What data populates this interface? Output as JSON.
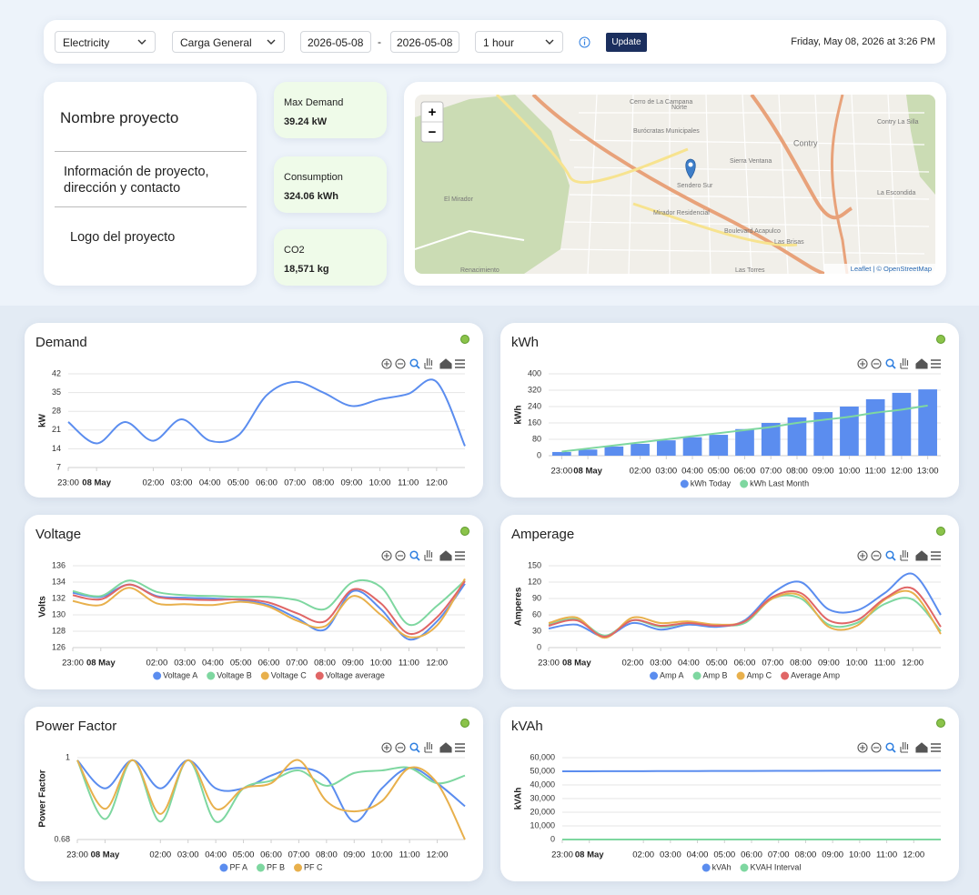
{
  "toolbar": {
    "source": "Electricity",
    "load": "Carga General",
    "date_from": "2026-05-08",
    "date_separator": "-",
    "date_to": "2026-05-08",
    "interval": "1 hour",
    "button": "Update",
    "datetime": "Friday, May 08, 2026 at 3:26 PM"
  },
  "project": {
    "name": "Nombre proyecto",
    "info": "Información de proyecto, dirección y contacto",
    "logo": "Logo del proyecto"
  },
  "kpis": [
    {
      "label": "Max Demand",
      "value": "39.24 kW"
    },
    {
      "label": "Consumption",
      "value": "324.06 kWh"
    },
    {
      "label": "CO2",
      "value": "18,571 kg"
    }
  ],
  "map": {
    "zoom_in": "+",
    "zoom_out": "−",
    "attribution": "Leaflet | © OpenStreetMap",
    "labels": [
      "Cerro de La Campana",
      "Burócratas Municipales",
      "Sierra Ventana",
      "Sendero Sur",
      "El Mirador",
      "Mirador Residencial",
      "Boulevard Acapulco",
      "Contry",
      "Las Brisas",
      "Contry La Silla",
      "La Escondida",
      "Renacimiento",
      "Las Torres",
      "Norte"
    ]
  },
  "chart_data": [
    {
      "type": "line",
      "title": "Demand",
      "y_label": "kW",
      "categories": [
        "23:00",
        "08 May",
        null,
        "02:00",
        "03:00",
        "04:00",
        "05:00",
        "06:00",
        "07:00",
        "08:00",
        "09:00",
        "10:00",
        "11:00",
        "12:00",
        null
      ],
      "values": [
        24,
        16,
        24,
        17,
        25,
        17,
        19,
        34,
        39,
        35,
        30,
        32.5,
        34.5,
        39,
        15
      ],
      "color": "#5b8def",
      "ylim": [
        7,
        42
      ],
      "yticks": [
        7,
        14,
        21,
        28,
        35,
        42
      ],
      "grid": true
    },
    {
      "type": "bar",
      "title": "kWh",
      "y_label": "kWh",
      "categories": [
        "23:00",
        "08 May",
        null,
        "02:00",
        "03:00",
        "04:00",
        "05:00",
        "06:00",
        "07:00",
        "08:00",
        "09:00",
        "10:00",
        "11:00",
        "12:00",
        "13:00"
      ],
      "series": [
        {
          "name": "kWh Today",
          "type": "bar",
          "color": "#5b8def",
          "values": [
            18,
            30,
            45,
            58,
            75,
            90,
            102,
            130,
            160,
            187,
            213,
            240,
            276,
            307,
            324
          ]
        },
        {
          "name": "kWh Last Month",
          "type": "line",
          "color": "#7ed7a0",
          "values": [
            20,
            35,
            50,
            65,
            80,
            95,
            110,
            125,
            140,
            160,
            175,
            190,
            210,
            225,
            245
          ]
        }
      ],
      "ylim": [
        0,
        400
      ],
      "yticks": [
        0,
        80,
        160,
        240,
        320,
        400
      ],
      "grid": true,
      "legend": "bottom"
    },
    {
      "type": "line",
      "title": "Voltage",
      "y_label": "Volts",
      "categories": [
        "23:00",
        "08 May",
        null,
        "02:00",
        "03:00",
        "04:00",
        "05:00",
        "06:00",
        "07:00",
        "08:00",
        "09:00",
        "10:00",
        "11:00",
        "12:00",
        null
      ],
      "series": [
        {
          "name": "Voltage A",
          "color": "#5b8def",
          "values": [
            132.7,
            132.2,
            133.7,
            132.3,
            132.1,
            132,
            131.8,
            131.2,
            129.6,
            128.2,
            132.9,
            130.7,
            127,
            129.2,
            133.8
          ]
        },
        {
          "name": "Voltage B",
          "color": "#7ed7a0",
          "values": [
            132.9,
            132.3,
            134.2,
            132.8,
            132.4,
            132.3,
            132.2,
            132.2,
            131.8,
            130.7,
            134,
            133.4,
            128.8,
            131.1,
            134.2
          ]
        },
        {
          "name": "Voltage C",
          "color": "#e8b04c",
          "values": [
            131.7,
            131.2,
            133.3,
            131.4,
            131.3,
            131.2,
            131.6,
            131,
            129.3,
            128.6,
            132.3,
            130,
            127.3,
            128.7,
            134.4
          ]
        },
        {
          "name": "Voltage average",
          "color": "#e06666",
          "values": [
            132.4,
            131.9,
            133.7,
            132.2,
            131.9,
            131.8,
            131.9,
            131.5,
            130.2,
            129.2,
            133.1,
            131.4,
            127.7,
            129.7,
            134.1
          ]
        }
      ],
      "ylim": [
        126,
        136
      ],
      "yticks": [
        126,
        128,
        130,
        132,
        134,
        136
      ],
      "grid": true,
      "legend": "bottom"
    },
    {
      "type": "line",
      "title": "Amperage",
      "y_label": "Amperes",
      "categories": [
        "23:00",
        "08 May",
        null,
        "02:00",
        "03:00",
        "04:00",
        "05:00",
        "06:00",
        "07:00",
        "08:00",
        "09:00",
        "10:00",
        "11:00",
        "12:00",
        null
      ],
      "series": [
        {
          "name": "Amp A",
          "color": "#5b8def",
          "values": [
            35,
            42,
            20,
            45,
            33,
            42,
            38,
            50,
            100,
            120,
            70,
            68,
            100,
            135,
            60
          ]
        },
        {
          "name": "Amp B",
          "color": "#7ed7a0",
          "values": [
            42,
            52,
            22,
            50,
            38,
            45,
            42,
            45,
            90,
            90,
            42,
            45,
            80,
            88,
            30
          ]
        },
        {
          "name": "Amp C",
          "color": "#e8b04c",
          "values": [
            45,
            55,
            18,
            55,
            45,
            48,
            42,
            48,
            90,
            95,
            38,
            40,
            88,
            100,
            25
          ]
        },
        {
          "name": "Average Amp",
          "color": "#e06666",
          "values": [
            40,
            50,
            20,
            50,
            40,
            45,
            40,
            48,
            93,
            100,
            50,
            50,
            90,
            108,
            38
          ]
        }
      ],
      "ylim": [
        0,
        150
      ],
      "yticks": [
        0,
        30,
        60,
        90,
        120,
        150
      ],
      "grid": true,
      "legend": "bottom"
    },
    {
      "type": "line",
      "title": "Power Factor",
      "y_label": "Power Factor",
      "categories": [
        "23:00",
        "08 May",
        null,
        "02:00",
        "03:00",
        "04:00",
        "05:00",
        "06:00",
        "07:00",
        "08:00",
        "09:00",
        "10:00",
        "11:00",
        "12:00",
        null
      ],
      "series": [
        {
          "name": "PF A",
          "color": "#5b8def",
          "values": [
            0.99,
            0.88,
            0.99,
            0.88,
            0.99,
            0.88,
            0.88,
            0.93,
            0.96,
            0.92,
            0.75,
            0.88,
            0.96,
            0.9,
            0.81
          ]
        },
        {
          "name": "PF B",
          "color": "#7ed7a0",
          "values": [
            0.99,
            0.76,
            0.99,
            0.75,
            0.99,
            0.75,
            0.88,
            0.91,
            0.95,
            0.89,
            0.94,
            0.95,
            0.96,
            0.9,
            0.93
          ]
        },
        {
          "name": "PF C",
          "color": "#e8b04c",
          "values": [
            0.99,
            0.8,
            0.99,
            0.78,
            0.99,
            0.8,
            0.88,
            0.9,
            0.99,
            0.83,
            0.79,
            0.83,
            0.96,
            0.9,
            0.68
          ]
        }
      ],
      "ylim": [
        0.68,
        1
      ],
      "yticks": [
        0.68,
        1
      ],
      "grid": true,
      "legend": "bottom"
    },
    {
      "type": "line",
      "title": "kVAh",
      "y_label": "kVAh",
      "categories": [
        "23:00",
        "08 May",
        null,
        "02:00",
        "03:00",
        "04:00",
        "05:00",
        "06:00",
        "07:00",
        "08:00",
        "09:00",
        "10:00",
        "11:00",
        "12:00",
        null
      ],
      "series": [
        {
          "name": "kVAh",
          "color": "#5b8def",
          "values": [
            50000,
            50040,
            50080,
            50120,
            50160,
            50200,
            50240,
            50280,
            50320,
            50360,
            50400,
            50440,
            50480,
            50520,
            50560
          ]
        },
        {
          "name": "KVAH Interval",
          "color": "#7ed7a0",
          "values": [
            25,
            22,
            20,
            19,
            20,
            22,
            24,
            25,
            35,
            38,
            30,
            32,
            34,
            36,
            39
          ]
        }
      ],
      "ylim": [
        0,
        60000
      ],
      "yticks": [
        0,
        {
          "value": 10000,
          "label": "10,000"
        },
        {
          "value": 20000,
          "label": "20,000"
        },
        {
          "value": 30000,
          "label": "30,000"
        },
        {
          "value": 40000,
          "label": "40,000"
        },
        {
          "value": 50000,
          "label": "50,000"
        },
        {
          "value": 60000,
          "label": "60,000"
        }
      ],
      "grid": true,
      "legend": "bottom"
    }
  ]
}
